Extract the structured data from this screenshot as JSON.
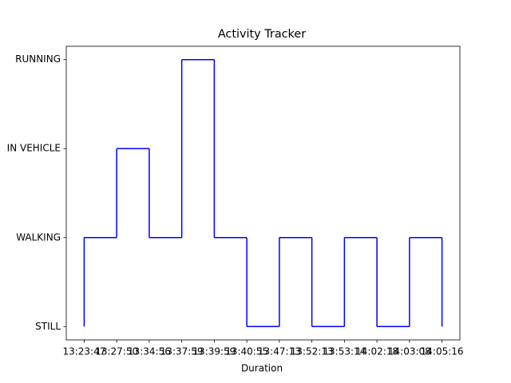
{
  "chart_data": {
    "type": "step",
    "title": "Activity Tracker",
    "x_label": "Duration",
    "categories": [
      "13:23:47",
      "13:27:50",
      "13:34:56",
      "13:37:59",
      "13:39:59",
      "13:40:55",
      "13:47:13",
      "13:52:13",
      "13:53:14",
      "14:02:18",
      "14:03:08",
      "14:05:16"
    ],
    "ycategories": [
      "STILL",
      "WALKING",
      "IN VEHICLE",
      "RUNNING"
    ],
    "values": [
      "STILL",
      "WALKING",
      "IN VEHICLE",
      "WALKING",
      "RUNNING",
      "WALKING",
      "STILL",
      "WALKING",
      "STILL",
      "WALKING",
      "STILL",
      "WALKING"
    ],
    "step": "pre",
    "color": "#0000ff",
    "grid": false
  }
}
